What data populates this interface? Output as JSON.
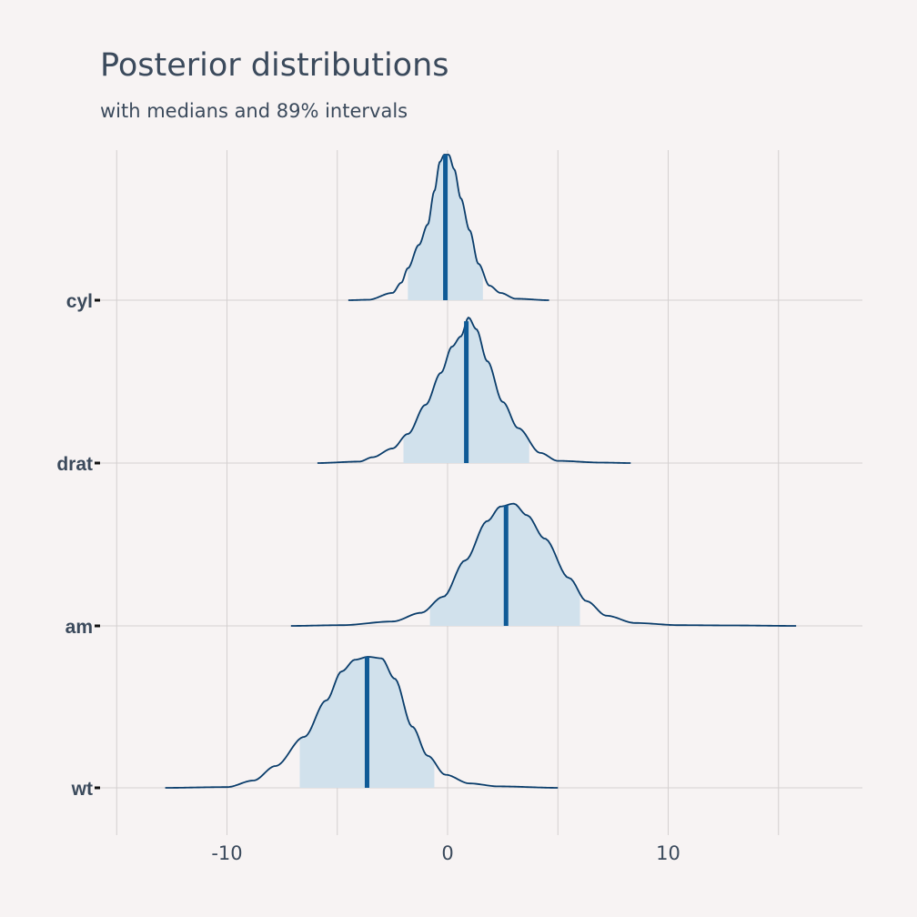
{
  "chart_data": {
    "type": "density_ridges",
    "title": "Posterior distributions",
    "subtitle": "with medians and 89% intervals",
    "xlabel": "",
    "ylabel": "",
    "xlim": [
      -15,
      18.5
    ],
    "x_ticks": [
      -10,
      0,
      10
    ],
    "grid": true,
    "fill_color": "#d1e1ec",
    "line_color": "#0a3d6b",
    "median_color": "#0f5a96",
    "series": [
      {
        "name": "cyl",
        "median": -0.1,
        "interval_89": [
          -1.8,
          1.6
        ],
        "range": [
          -4.5,
          4.6
        ],
        "density": [
          [
            -4.5,
            0
          ],
          [
            -3.6,
            0.003
          ],
          [
            -2.5,
            0.05
          ],
          [
            -2.1,
            0.12
          ],
          [
            -1.8,
            0.22
          ],
          [
            -1.3,
            0.38
          ],
          [
            -0.9,
            0.52
          ],
          [
            -0.6,
            0.75
          ],
          [
            -0.35,
            0.95
          ],
          [
            -0.15,
            1.0
          ],
          [
            0.05,
            1.0
          ],
          [
            0.3,
            0.9
          ],
          [
            0.6,
            0.7
          ],
          [
            1.0,
            0.48
          ],
          [
            1.4,
            0.25
          ],
          [
            1.9,
            0.1
          ],
          [
            2.4,
            0.05
          ],
          [
            3.1,
            0.01
          ],
          [
            4.6,
            0
          ]
        ]
      },
      {
        "name": "drat",
        "median": 0.85,
        "interval_89": [
          -2.0,
          3.7
        ],
        "range": [
          -5.9,
          8.3
        ],
        "density": [
          [
            -5.9,
            0
          ],
          [
            -4.0,
            0.01
          ],
          [
            -3.4,
            0.04
          ],
          [
            -2.5,
            0.1
          ],
          [
            -1.8,
            0.2
          ],
          [
            -1.0,
            0.4
          ],
          [
            -0.3,
            0.62
          ],
          [
            0.2,
            0.8
          ],
          [
            0.6,
            0.87
          ],
          [
            0.95,
            1.0
          ],
          [
            1.3,
            0.92
          ],
          [
            1.8,
            0.7
          ],
          [
            2.5,
            0.42
          ],
          [
            3.2,
            0.24
          ],
          [
            4.2,
            0.07
          ],
          [
            5.0,
            0.015
          ],
          [
            7.0,
            0.003
          ],
          [
            8.3,
            0
          ]
        ]
      },
      {
        "name": "am",
        "median": 2.65,
        "interval_89": [
          -0.8,
          6.0
        ],
        "range": [
          -7.1,
          15.8
        ],
        "density": [
          [
            -7.1,
            0
          ],
          [
            -4.8,
            0.005
          ],
          [
            -2.5,
            0.03
          ],
          [
            -1.2,
            0.09
          ],
          [
            -0.2,
            0.2
          ],
          [
            0.8,
            0.45
          ],
          [
            1.8,
            0.72
          ],
          [
            2.4,
            0.82
          ],
          [
            3.0,
            0.84
          ],
          [
            3.6,
            0.76
          ],
          [
            4.4,
            0.6
          ],
          [
            5.5,
            0.33
          ],
          [
            6.3,
            0.17
          ],
          [
            7.2,
            0.07
          ],
          [
            8.5,
            0.02
          ],
          [
            10.5,
            0.005
          ],
          [
            13.0,
            0.003
          ],
          [
            15.8,
            0
          ]
        ]
      },
      {
        "name": "wt",
        "median": -3.65,
        "interval_89": [
          -6.7,
          -0.6
        ],
        "range": [
          -12.8,
          5.0
        ],
        "density": [
          [
            -12.8,
            0
          ],
          [
            -10.0,
            0.005
          ],
          [
            -8.8,
            0.05
          ],
          [
            -7.8,
            0.15
          ],
          [
            -6.5,
            0.35
          ],
          [
            -5.5,
            0.6
          ],
          [
            -4.8,
            0.8
          ],
          [
            -4.2,
            0.88
          ],
          [
            -3.6,
            0.9
          ],
          [
            -3.0,
            0.89
          ],
          [
            -2.4,
            0.75
          ],
          [
            -1.6,
            0.42
          ],
          [
            -0.9,
            0.22
          ],
          [
            -0.1,
            0.09
          ],
          [
            1.0,
            0.03
          ],
          [
            2.3,
            0.01
          ],
          [
            5.0,
            0
          ]
        ]
      }
    ]
  }
}
